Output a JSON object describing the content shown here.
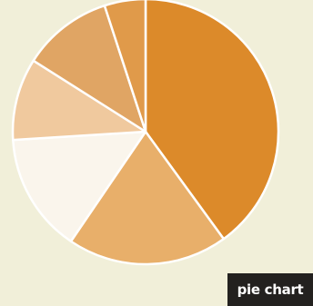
{
  "chart_data": {
    "type": "pie",
    "title": "",
    "slices": [
      {
        "value": 40,
        "color": "#dc8a2a"
      },
      {
        "value": 19.5,
        "color": "#e8af6a"
      },
      {
        "value": 14.5,
        "color": "#faf5ec"
      },
      {
        "value": 10,
        "color": "#f0c99e"
      },
      {
        "value": 11,
        "color": "#e0a564"
      },
      {
        "value": 5,
        "color": "#e09a4a"
      }
    ],
    "slice_border_color": "#ffffff"
  },
  "caption": {
    "label": "pie chart",
    "background": "#23211f",
    "color": "#ffffff"
  }
}
